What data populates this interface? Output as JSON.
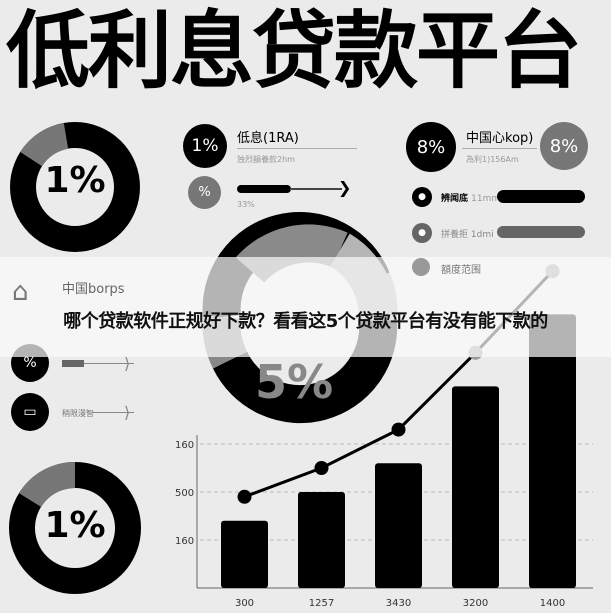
{
  "title": "低利息贷款平台",
  "top_donut": {
    "label": "1%",
    "colors": [
      "#000000",
      "#777777"
    ]
  },
  "left_items": [
    {
      "value": "1%",
      "label": "低息(1RA)",
      "sub": "独烈韻養款2hm"
    },
    {
      "value": "%",
      "bar_label": "33%"
    }
  ],
  "right_header": {
    "value_left": "8%",
    "label": "中国心kop)",
    "sub": "為利1)156Am",
    "value_right": "8%"
  },
  "right_rows": [
    {
      "label": "辨闻底",
      "unit": "11mm"
    },
    {
      "label": "拼養拒",
      "unit": "1dmi"
    },
    {
      "label": "額度范围"
    }
  ],
  "center_donut": {
    "label": "5%"
  },
  "mid_left": {
    "label": "中国borps",
    "row2": "%",
    "row3": "稍限漫智"
  },
  "bottom_donut": {
    "label": "1%"
  },
  "banner": {
    "text": "哪个贷款软件正规好下款？看看这5个贷款平台有没有能下款的"
  },
  "chart_data": {
    "type": "bar",
    "categories": [
      "300",
      "1257",
      "3430",
      "3200",
      "1400"
    ],
    "values": [
      1.4,
      2.0,
      2.6,
      4.2,
      5.7
    ],
    "line_values": [
      1.9,
      2.5,
      3.3,
      4.9,
      6.6
    ],
    "ytick_labels": [
      "160",
      "500",
      "160"
    ],
    "ytick_values": [
      1,
      2,
      3
    ],
    "grid": true
  }
}
